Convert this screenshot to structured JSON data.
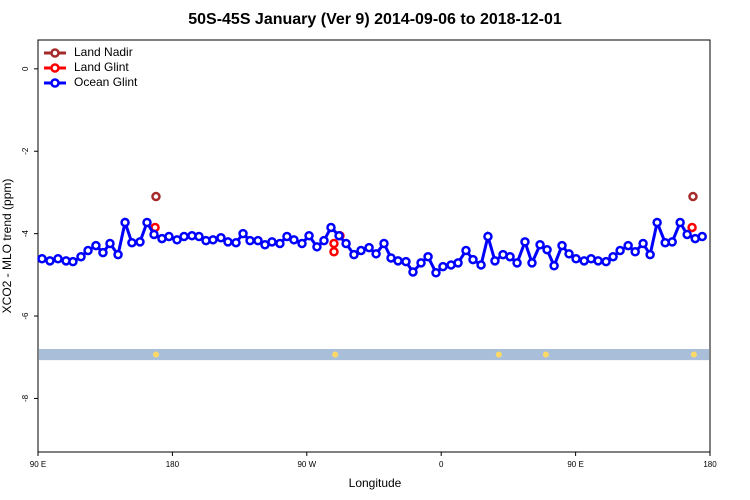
{
  "chart_data": {
    "type": "line",
    "title": "50S-45S January (Ver 9)   2014-09-06 to 2018-12-01",
    "xlabel": "Longitude",
    "ylabel": "XCO2 - MLO trend (ppm)",
    "xlim": [
      90,
      540
    ],
    "ylim": [
      -9.3,
      0.7
    ],
    "xticks": [
      {
        "value": 90,
        "label": "90 E"
      },
      180,
      {
        "value": 270,
        "label": "90 W"
      },
      {
        "value": 360,
        "label": "0"
      },
      {
        "value": 450,
        "label": "90 E"
      },
      {
        "value": 540,
        "label": "180"
      }
    ],
    "yticks": [
      0,
      -2,
      -4,
      -6,
      -8
    ],
    "legend": "top-left",
    "band": {
      "color": "#a9bfd9",
      "range": [
        -6.8,
        -7.07
      ],
      "marker_color": "#ffd966",
      "markers_x": [
        169.0,
        289.0,
        398.6,
        430.1,
        529.2
      ]
    },
    "series": [
      {
        "name": "Land Nadir",
        "color": "#a52a2a",
        "lines": false,
        "x": [
          169.0,
          528.6
        ],
        "values": [
          -3.1,
          -3.1
        ]
      },
      {
        "name": "Land Glint",
        "color": "#ff0000",
        "lines": false,
        "x": [
          168.4,
          288.2,
          288.2,
          292.2,
          528.0
        ],
        "values": [
          -3.85,
          -4.24,
          -4.44,
          -4.05,
          -3.85
        ]
      },
      {
        "name": "Ocean Glint",
        "color": "#0000ff",
        "lines": true,
        "x": [
          92.7,
          98.0,
          103.4,
          108.8,
          113.4,
          118.8,
          123.5,
          128.8,
          133.5,
          138.2,
          143.6,
          148.3,
          152.9,
          158.3,
          163.0,
          167.7,
          173.0,
          177.7,
          183.1,
          187.8,
          193.1,
          197.8,
          202.5,
          207.2,
          212.5,
          217.2,
          222.6,
          227.3,
          232.0,
          237.3,
          242.0,
          246.7,
          252.0,
          256.7,
          261.4,
          266.8,
          271.5,
          276.8,
          281.5,
          286.2,
          291.6,
          296.3,
          301.6,
          306.3,
          311.7,
          316.4,
          321.7,
          326.4,
          331.1,
          336.4,
          341.1,
          346.5,
          351.2,
          356.5,
          361.2,
          366.6,
          371.3,
          376.6,
          381.3,
          386.7,
          391.3,
          396.0,
          401.4,
          406.1,
          410.8,
          416.1,
          420.8,
          426.2,
          430.9,
          435.6,
          440.9,
          445.6,
          450.3,
          455.7,
          460.4,
          465.1,
          470.4,
          475.1,
          479.8,
          485.2,
          489.9,
          495.2,
          499.9,
          504.6,
          510.0,
          514.7,
          520.0,
          524.7,
          530.1,
          534.8
        ],
        "values": [
          -4.61,
          -4.66,
          -4.61,
          -4.66,
          -4.68,
          -4.56,
          -4.41,
          -4.29,
          -4.46,
          -4.24,
          -4.51,
          -3.73,
          -4.22,
          -4.2,
          -3.73,
          -4.02,
          -4.12,
          -4.07,
          -4.15,
          -4.07,
          -4.05,
          -4.07,
          -4.17,
          -4.15,
          -4.1,
          -4.2,
          -4.22,
          -4.0,
          -4.17,
          -4.17,
          -4.27,
          -4.2,
          -4.24,
          -4.07,
          -4.15,
          -4.24,
          -4.05,
          -4.32,
          -4.17,
          -3.85,
          -4.05,
          -4.24,
          -4.51,
          -4.41,
          -4.34,
          -4.49,
          -4.24,
          -4.59,
          -4.66,
          -4.68,
          -4.93,
          -4.71,
          -4.56,
          -4.95,
          -4.8,
          -4.76,
          -4.71,
          -4.41,
          -4.63,
          -4.76,
          -4.07,
          -4.66,
          -4.51,
          -4.56,
          -4.71,
          -4.2,
          -4.71,
          -4.27,
          -4.39,
          -4.78,
          -4.29,
          -4.49,
          -4.61,
          -4.66,
          -4.61,
          -4.66,
          -4.68,
          -4.56,
          -4.41,
          -4.29,
          -4.44,
          -4.24,
          -4.51,
          -3.73,
          -4.22,
          -4.2,
          -3.73,
          -4.02,
          -4.12,
          -4.07
        ]
      }
    ]
  }
}
